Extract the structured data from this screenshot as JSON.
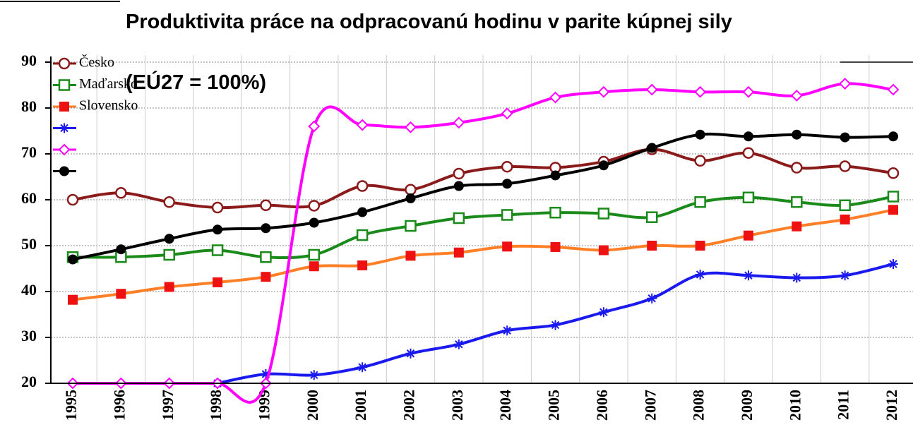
{
  "chart_data": {
    "type": "line",
    "title": "Produktivita práce na odpracovanú hodinu v parite kúpnej sily",
    "subtitle": "(EÚ27 = 100%)",
    "categories": [
      "1995",
      "1996",
      "1997",
      "1998",
      "1999",
      "2000",
      "2001",
      "2002",
      "2003",
      "2004",
      "2005",
      "2006",
      "2007",
      "2008",
      "2009",
      "2010",
      "2011",
      "2012"
    ],
    "series": [
      {
        "name": "Česko",
        "color": "#8b1a1a",
        "marker": "circle-open",
        "values": [
          60,
          61.5,
          59.5,
          58.3,
          58.8,
          58.7,
          63,
          62.2,
          65.7,
          67.2,
          67,
          68.3,
          71,
          68.5,
          70.2,
          67,
          67.3,
          65.8
        ]
      },
      {
        "name": "Maďarsko",
        "color": "#1a8a1a",
        "marker": "square-open",
        "values": [
          47.5,
          47.5,
          48,
          49,
          47.5,
          48,
          52.3,
          54.3,
          56,
          56.7,
          57.2,
          57,
          56.2,
          59.5,
          60.5,
          59.5,
          58.8,
          60.7
        ]
      },
      {
        "name": "Slovensko",
        "color": "#ff7f27",
        "marker_color": "#ee1111",
        "marker": "square",
        "values": [
          38.2,
          39.5,
          41,
          42,
          43.2,
          45.5,
          45.7,
          47.8,
          48.5,
          49.8,
          49.7,
          49,
          50,
          50,
          52.2,
          54.2,
          55.7,
          57.8
        ]
      },
      {
        "color": "#1a1aee",
        "marker": "star",
        "values": [
          null,
          null,
          null,
          20,
          22,
          21.8,
          23.5,
          26.5,
          28.5,
          31.5,
          32.7,
          35.5,
          38.5,
          43.7,
          43.5,
          43,
          43.5,
          46
        ]
      },
      {
        "color": "#ff00ff",
        "marker": "diamond-open",
        "values": [
          20,
          20,
          20,
          20,
          20,
          76,
          76.3,
          75.8,
          76.8,
          78.8,
          82.3,
          83.5,
          84,
          83.5,
          83.5,
          82.7,
          85.3,
          84
        ]
      },
      {
        "color": "#000000",
        "marker": "circle",
        "values": [
          47,
          49.2,
          51.5,
          53.5,
          53.8,
          55,
          57.3,
          60.3,
          63,
          63.5,
          65.3,
          67.5,
          71.3,
          74.2,
          73.8,
          74.2,
          73.6,
          73.8
        ]
      }
    ],
    "ylim": [
      20,
      90
    ],
    "yticks": [
      20,
      30,
      40,
      50,
      60,
      70,
      80,
      90
    ],
    "grid": true,
    "legend": "upper-left"
  }
}
